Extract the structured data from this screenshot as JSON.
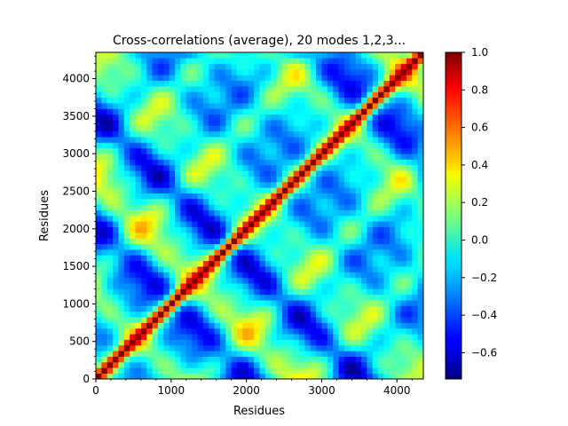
{
  "chart_data": {
    "type": "heatmap",
    "title": "Cross-correlations (average), 20 modes 1,2,3...",
    "xlabel": "Residues",
    "ylabel": "Residues",
    "xlim": [
      0,
      4350
    ],
    "ylim": [
      0,
      4350
    ],
    "x_ticks": [
      0,
      1000,
      2000,
      3000,
      4000
    ],
    "y_ticks": [
      0,
      500,
      1000,
      1500,
      2000,
      2500,
      3000,
      3500,
      4000
    ],
    "x_tick_labels": [
      "0",
      "1000",
      "2000",
      "3000",
      "4000"
    ],
    "y_tick_labels": [
      "0",
      "500",
      "1000",
      "1500",
      "2000",
      "2500",
      "3000",
      "3500",
      "4000"
    ],
    "colormap": "jet",
    "color_range": [
      -0.74,
      1.0
    ],
    "colorbar_ticks": [
      1.0,
      0.8,
      0.6,
      0.4,
      0.2,
      0.0,
      -0.2,
      -0.4,
      -0.6
    ],
    "colorbar_tick_labels": [
      "1.0",
      "0.8",
      "0.6",
      "0.4",
      "0.2",
      "0.0",
      "−0.2",
      "−0.4",
      "−0.6"
    ],
    "diagonal_value": 1.0,
    "symmetric": true,
    "grid": false
  }
}
